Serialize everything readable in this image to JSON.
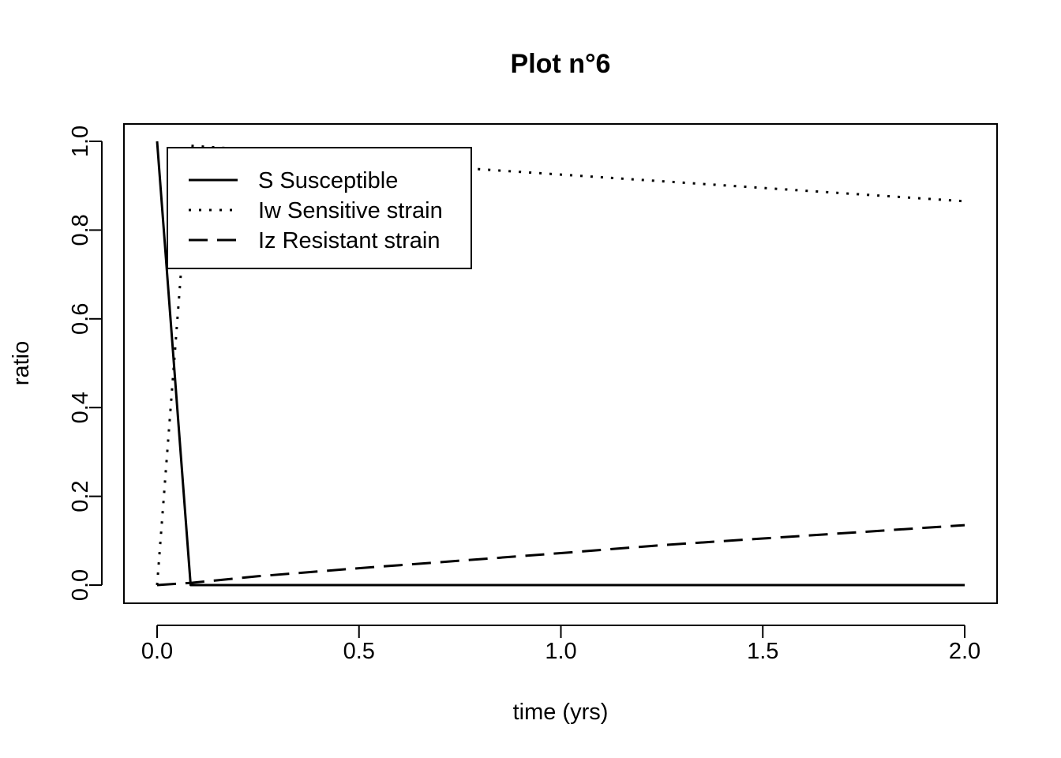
{
  "chart_data": {
    "type": "line",
    "title": "Plot n°6",
    "xlabel": "time (yrs)",
    "ylabel": "ratio",
    "xlim": [
      0,
      2
    ],
    "ylim": [
      0,
      1
    ],
    "xticks": [
      "0.0",
      "0.5",
      "1.0",
      "1.5",
      "2.0"
    ],
    "yticks": [
      "0.0",
      "0.2",
      "0.4",
      "0.6",
      "0.8",
      "1.0"
    ],
    "grid": false,
    "legend_position": "top-left",
    "series": [
      {
        "name": "S Susceptible",
        "style": "solid",
        "color": "#000000",
        "x": [
          0,
          0.083,
          2.0
        ],
        "y": [
          1.0,
          0.0,
          0.0
        ]
      },
      {
        "name": "Iw Sensitive strain",
        "style": "dotted",
        "color": "#000000",
        "x": [
          0,
          0.083,
          0.167,
          0.5,
          1.0,
          1.5,
          2.0
        ],
        "y": [
          0.0,
          0.99,
          0.985,
          0.955,
          0.925,
          0.895,
          0.865
        ]
      },
      {
        "name": "Iz Resistant strain",
        "style": "dashed",
        "color": "#000000",
        "x": [
          0,
          0.083,
          0.25,
          0.5,
          0.75,
          1.0,
          1.25,
          1.5,
          1.75,
          2.0
        ],
        "y": [
          0.0,
          0.005,
          0.02,
          0.038,
          0.055,
          0.072,
          0.09,
          0.105,
          0.12,
          0.135
        ]
      }
    ]
  }
}
